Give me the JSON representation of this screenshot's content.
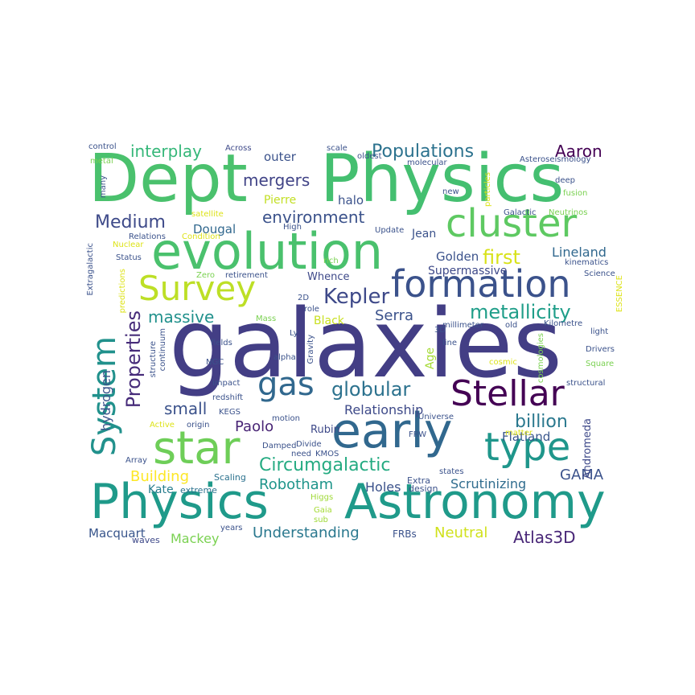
{
  "wordcloud": {
    "words": [
      {
        "text": "galaxies",
        "color": "#433e85"
      },
      {
        "text": "Dept",
        "color": "#4ac16d"
      },
      {
        "text": "Physics",
        "color": "#44bf70"
      },
      {
        "text": "Physics",
        "color": "#1f9a8a"
      },
      {
        "text": "Astronomy",
        "color": "#1f9a8a"
      },
      {
        "text": "evolution",
        "color": "#4ac16d"
      },
      {
        "text": "formation",
        "color": "#3b528b"
      },
      {
        "text": "cluster",
        "color": "#5ec962"
      },
      {
        "text": "Survey",
        "color": "#bddf26"
      },
      {
        "text": "early",
        "color": "#31688e"
      },
      {
        "text": "star",
        "color": "#6ece58"
      },
      {
        "text": "Stellar",
        "color": "#440154"
      },
      {
        "text": "type",
        "color": "#1f968b"
      },
      {
        "text": "System",
        "color": "#21918c"
      },
      {
        "text": "gas",
        "color": "#31688e"
      },
      {
        "text": "globular",
        "color": "#2c728e"
      },
      {
        "text": "Kepler",
        "color": "#3e4989"
      },
      {
        "text": "metallicity",
        "color": "#1f9e89"
      },
      {
        "text": "Properties",
        "color": "#472c7a"
      },
      {
        "text": "Populations",
        "color": "#2c728e"
      },
      {
        "text": "Aaron",
        "color": "#440154"
      },
      {
        "text": "interplay",
        "color": "#35b779"
      },
      {
        "text": "mergers",
        "color": "#414487"
      },
      {
        "text": "environment",
        "color": "#3b528b"
      },
      {
        "text": "Medium",
        "color": "#3e4a89"
      },
      {
        "text": "first",
        "color": "#d8e219"
      },
      {
        "text": "massive",
        "color": "#21918c"
      },
      {
        "text": "billion",
        "color": "#2a788e"
      },
      {
        "text": "Circumgalactic",
        "color": "#25ab82"
      },
      {
        "text": "Robotham",
        "color": "#1f958b"
      },
      {
        "text": "Understanding",
        "color": "#2a788e"
      },
      {
        "text": "Neutral",
        "color": "#d0e11c"
      },
      {
        "text": "Atlas3D",
        "color": "#482677"
      },
      {
        "text": "GAMA",
        "color": "#3b528b"
      },
      {
        "text": "Andromeda",
        "color": "#3e4989"
      },
      {
        "text": "Relationship",
        "color": "#3e4a89"
      },
      {
        "text": "small",
        "color": "#3b528b"
      },
      {
        "text": "Paolo",
        "color": "#482475"
      },
      {
        "text": "Serra",
        "color": "#3b528b"
      },
      {
        "text": "Building",
        "color": "#fde725"
      },
      {
        "text": "Scrutinizing",
        "color": "#2f6c8e"
      },
      {
        "text": "Flatland",
        "color": "#39568c"
      },
      {
        "text": "Holes",
        "color": "#3b528b"
      },
      {
        "text": "hydrogen",
        "color": "#3b528b"
      },
      {
        "text": "Lineland",
        "color": "#31688e"
      },
      {
        "text": "Golden",
        "color": "#3b528b"
      },
      {
        "text": "Supermassive",
        "color": "#3e4989"
      },
      {
        "text": "Mackey",
        "color": "#7ad151"
      },
      {
        "text": "Macquart",
        "color": "#39568c"
      },
      {
        "text": "Kate",
        "color": "#287d8e"
      },
      {
        "text": "Dougal",
        "color": "#31688e"
      },
      {
        "text": "outer",
        "color": "#3b528b"
      },
      {
        "text": "halo",
        "color": "#3b528b"
      },
      {
        "text": "Pierre",
        "color": "#c2df23"
      },
      {
        "text": "Jean",
        "color": "#3b528b"
      },
      {
        "text": "Black",
        "color": "#c8e020"
      },
      {
        "text": "Age",
        "color": "#a5db36"
      },
      {
        "text": "Whence",
        "color": "#3e4989"
      },
      {
        "text": "Rubin",
        "color": "#3e4989"
      },
      {
        "text": "FRBs",
        "color": "#3b528b"
      },
      {
        "text": "extreme",
        "color": "#2c728e"
      },
      {
        "text": "Scaling",
        "color": "#2c728e"
      },
      {
        "text": "Extra",
        "color": "#3b528b"
      },
      {
        "text": "design",
        "color": "#3b528b"
      },
      {
        "text": "Gaia",
        "color": "#a5db36"
      },
      {
        "text": "Higgs",
        "color": "#a0da39"
      },
      {
        "text": "sub",
        "color": "#a0da39"
      },
      {
        "text": "waves",
        "color": "#3e4989"
      },
      {
        "text": "years",
        "color": "#3b528b"
      },
      {
        "text": "control",
        "color": "#3b528b"
      },
      {
        "text": "Across",
        "color": "#3e4989"
      },
      {
        "text": "scale",
        "color": "#3b528b"
      },
      {
        "text": "metal",
        "color": "#7ad151"
      },
      {
        "text": "many",
        "color": "#3b528b"
      },
      {
        "text": "satellite",
        "color": "#dde318"
      },
      {
        "text": "Relations",
        "color": "#3b528b"
      },
      {
        "text": "Nuclear",
        "color": "#dde318"
      },
      {
        "text": "Condition",
        "color": "#dde318"
      },
      {
        "text": "Status",
        "color": "#3b528b"
      },
      {
        "text": "Extragalactic",
        "color": "#3b528b"
      },
      {
        "text": "predictions",
        "color": "#dde318"
      },
      {
        "text": "Zero",
        "color": "#7ad151"
      },
      {
        "text": "retirement",
        "color": "#3b528b"
      },
      {
        "text": "Mass",
        "color": "#7ad151"
      },
      {
        "text": "Ly",
        "color": "#3b528b"
      },
      {
        "text": "alpha",
        "color": "#3b528b"
      },
      {
        "text": "fields",
        "color": "#3b528b"
      },
      {
        "text": "NGC",
        "color": "#3b528b"
      },
      {
        "text": "structure",
        "color": "#3b528b"
      },
      {
        "text": "continuum",
        "color": "#3b528b"
      },
      {
        "text": "impact",
        "color": "#3b528b"
      },
      {
        "text": "redshift",
        "color": "#3b528b"
      },
      {
        "text": "Active",
        "color": "#dde318"
      },
      {
        "text": "origin",
        "color": "#3b528b"
      },
      {
        "text": "KEGS",
        "color": "#3b528b"
      },
      {
        "text": "motion",
        "color": "#3b528b"
      },
      {
        "text": "Damped",
        "color": "#3b528b"
      },
      {
        "text": "Divide",
        "color": "#3b528b"
      },
      {
        "text": "need",
        "color": "#3b528b"
      },
      {
        "text": "KMOS",
        "color": "#3b528b"
      },
      {
        "text": "Array",
        "color": "#3b528b"
      },
      {
        "text": "Gravity",
        "color": "#3b528b"
      },
      {
        "text": "2D",
        "color": "#3b528b"
      },
      {
        "text": "role",
        "color": "#3b528b"
      },
      {
        "text": "oldest",
        "color": "#3b528b"
      },
      {
        "text": "molecular",
        "color": "#3b528b"
      },
      {
        "text": "High",
        "color": "#3b528b"
      },
      {
        "text": "Update",
        "color": "#3b528b"
      },
      {
        "text": "rich",
        "color": "#7ad151"
      },
      {
        "text": "new",
        "color": "#3b528b"
      },
      {
        "text": "particles",
        "color": "#dde318"
      },
      {
        "text": "Galactic",
        "color": "#3b528b"
      },
      {
        "text": "Neutrinos",
        "color": "#7ad151"
      },
      {
        "text": "Asteroseismology",
        "color": "#3b528b"
      },
      {
        "text": "deep",
        "color": "#3b528b"
      },
      {
        "text": "fusion",
        "color": "#7ad151"
      },
      {
        "text": "kinematics",
        "color": "#3b528b"
      },
      {
        "text": "Science",
        "color": "#3b528b"
      },
      {
        "text": "ESSENCE",
        "color": "#dde318"
      },
      {
        "text": "Kilometre",
        "color": "#3b528b"
      },
      {
        "text": "light",
        "color": "#3b528b"
      },
      {
        "text": "millimeter",
        "color": "#3b528b"
      },
      {
        "text": "old",
        "color": "#3b528b"
      },
      {
        "text": "3D",
        "color": "#3b528b"
      },
      {
        "text": "line",
        "color": "#3b528b"
      },
      {
        "text": "cosmologies",
        "color": "#7ad151"
      },
      {
        "text": "Drivers",
        "color": "#3b528b"
      },
      {
        "text": "Square",
        "color": "#7ad151"
      },
      {
        "text": "cosmic",
        "color": "#dde318"
      },
      {
        "text": "structural",
        "color": "#3b528b"
      },
      {
        "text": "Universe",
        "color": "#3b528b"
      },
      {
        "text": "matter",
        "color": "#dde318"
      },
      {
        "text": "FRW",
        "color": "#3b528b"
      },
      {
        "text": "states",
        "color": "#3b528b"
      }
    ]
  }
}
